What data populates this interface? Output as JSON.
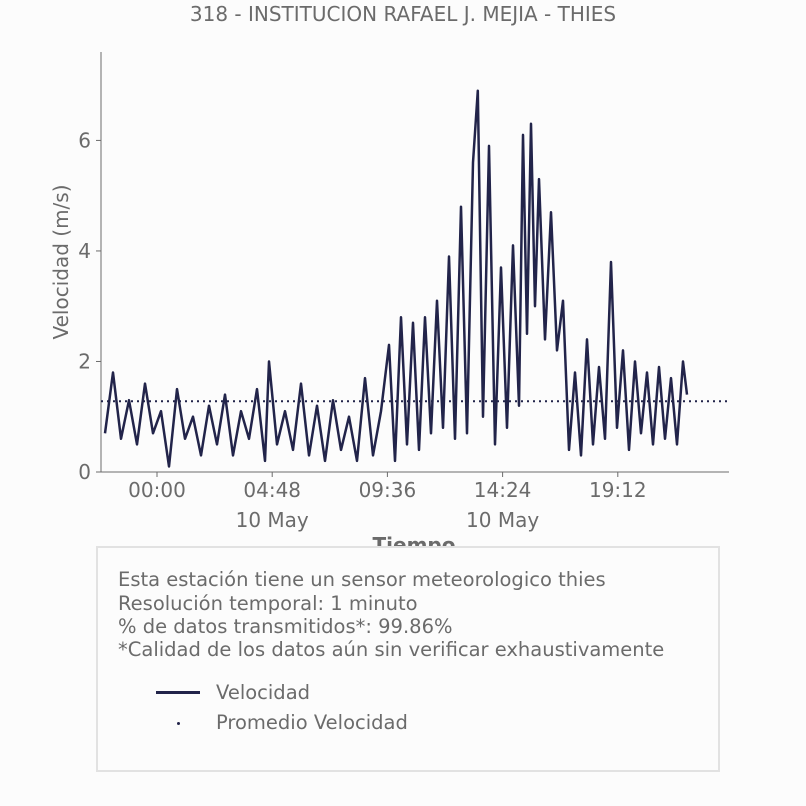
{
  "title": "318 - INSTITUCION RAFAEL J. MEJIA - THIES",
  "chart_data": {
    "type": "line",
    "ylabel": "Velocidad (m/s)",
    "xlabel": "Tiempo",
    "ylim": [
      0,
      7.6
    ],
    "yticks": [
      0,
      2,
      4,
      6
    ],
    "x_range": [
      "2023-05-09T21:40",
      "2023-05-10T23:50"
    ],
    "xticks": [
      {
        "time": "2023-05-10T00:00",
        "label": "00:00",
        "sublabel": ""
      },
      {
        "time": "2023-05-10T04:48",
        "label": "04:48",
        "sublabel": "10 May"
      },
      {
        "time": "2023-05-10T09:36",
        "label": "09:36",
        "sublabel": ""
      },
      {
        "time": "2023-05-10T14:24",
        "label": "14:24",
        "sublabel": "10 May"
      },
      {
        "time": "2023-05-10T19:12",
        "label": "19:12",
        "sublabel": ""
      }
    ],
    "series": [
      {
        "name": "Velocidad",
        "color": "#22244a",
        "style": "solid",
        "points": [
          [
            "2023-05-09T21:50",
            0.7
          ],
          [
            "2023-05-09T22:10",
            1.8
          ],
          [
            "2023-05-09T22:30",
            0.6
          ],
          [
            "2023-05-09T22:50",
            1.3
          ],
          [
            "2023-05-09T23:10",
            0.5
          ],
          [
            "2023-05-09T23:30",
            1.6
          ],
          [
            "2023-05-09T23:50",
            0.7
          ],
          [
            "2023-05-10T00:10",
            1.1
          ],
          [
            "2023-05-10T00:30",
            0.1
          ],
          [
            "2023-05-10T00:50",
            1.5
          ],
          [
            "2023-05-10T01:10",
            0.6
          ],
          [
            "2023-05-10T01:30",
            1.0
          ],
          [
            "2023-05-10T01:50",
            0.3
          ],
          [
            "2023-05-10T02:10",
            1.2
          ],
          [
            "2023-05-10T02:30",
            0.5
          ],
          [
            "2023-05-10T02:50",
            1.4
          ],
          [
            "2023-05-10T03:10",
            0.3
          ],
          [
            "2023-05-10T03:30",
            1.1
          ],
          [
            "2023-05-10T03:50",
            0.6
          ],
          [
            "2023-05-10T04:10",
            1.5
          ],
          [
            "2023-05-10T04:30",
            0.2
          ],
          [
            "2023-05-10T04:40",
            2.0
          ],
          [
            "2023-05-10T05:00",
            0.5
          ],
          [
            "2023-05-10T05:20",
            1.1
          ],
          [
            "2023-05-10T05:40",
            0.4
          ],
          [
            "2023-05-10T06:00",
            1.6
          ],
          [
            "2023-05-10T06:20",
            0.3
          ],
          [
            "2023-05-10T06:40",
            1.2
          ],
          [
            "2023-05-10T07:00",
            0.2
          ],
          [
            "2023-05-10T07:20",
            1.3
          ],
          [
            "2023-05-10T07:40",
            0.4
          ],
          [
            "2023-05-10T08:00",
            1.0
          ],
          [
            "2023-05-10T08:20",
            0.2
          ],
          [
            "2023-05-10T08:40",
            1.7
          ],
          [
            "2023-05-10T09:00",
            0.3
          ],
          [
            "2023-05-10T09:20",
            1.1
          ],
          [
            "2023-05-10T09:40",
            2.3
          ],
          [
            "2023-05-10T09:55",
            0.2
          ],
          [
            "2023-05-10T10:10",
            2.8
          ],
          [
            "2023-05-10T10:25",
            0.5
          ],
          [
            "2023-05-10T10:40",
            2.7
          ],
          [
            "2023-05-10T10:55",
            0.4
          ],
          [
            "2023-05-10T11:10",
            2.8
          ],
          [
            "2023-05-10T11:25",
            0.7
          ],
          [
            "2023-05-10T11:40",
            3.1
          ],
          [
            "2023-05-10T11:55",
            0.8
          ],
          [
            "2023-05-10T12:10",
            3.9
          ],
          [
            "2023-05-10T12:25",
            0.6
          ],
          [
            "2023-05-10T12:40",
            4.8
          ],
          [
            "2023-05-10T12:55",
            0.7
          ],
          [
            "2023-05-10T13:10",
            5.6
          ],
          [
            "2023-05-10T13:22",
            6.9
          ],
          [
            "2023-05-10T13:35",
            1.0
          ],
          [
            "2023-05-10T13:50",
            5.9
          ],
          [
            "2023-05-10T14:05",
            0.5
          ],
          [
            "2023-05-10T14:20",
            3.7
          ],
          [
            "2023-05-10T14:35",
            0.8
          ],
          [
            "2023-05-10T14:50",
            4.1
          ],
          [
            "2023-05-10T15:05",
            1.2
          ],
          [
            "2023-05-10T15:15",
            6.1
          ],
          [
            "2023-05-10T15:25",
            2.5
          ],
          [
            "2023-05-10T15:35",
            6.3
          ],
          [
            "2023-05-10T15:45",
            3.0
          ],
          [
            "2023-05-10T15:55",
            5.3
          ],
          [
            "2023-05-10T16:10",
            2.4
          ],
          [
            "2023-05-10T16:25",
            4.7
          ],
          [
            "2023-05-10T16:40",
            2.2
          ],
          [
            "2023-05-10T16:55",
            3.1
          ],
          [
            "2023-05-10T17:10",
            0.4
          ],
          [
            "2023-05-10T17:25",
            1.8
          ],
          [
            "2023-05-10T17:40",
            0.3
          ],
          [
            "2023-05-10T17:55",
            2.4
          ],
          [
            "2023-05-10T18:10",
            0.5
          ],
          [
            "2023-05-10T18:25",
            1.9
          ],
          [
            "2023-05-10T18:40",
            0.6
          ],
          [
            "2023-05-10T18:55",
            3.8
          ],
          [
            "2023-05-10T19:10",
            0.8
          ],
          [
            "2023-05-10T19:25",
            2.2
          ],
          [
            "2023-05-10T19:40",
            0.4
          ],
          [
            "2023-05-10T19:55",
            2.0
          ],
          [
            "2023-05-10T20:10",
            0.7
          ],
          [
            "2023-05-10T20:25",
            1.8
          ],
          [
            "2023-05-10T20:40",
            0.5
          ],
          [
            "2023-05-10T20:55",
            1.9
          ],
          [
            "2023-05-10T21:10",
            0.6
          ],
          [
            "2023-05-10T21:25",
            1.7
          ],
          [
            "2023-05-10T21:40",
            0.5
          ],
          [
            "2023-05-10T21:55",
            2.0
          ],
          [
            "2023-05-10T22:05",
            1.4
          ]
        ]
      },
      {
        "name": "Promedio Velocidad",
        "color": "#22244a",
        "style": "dotted",
        "constant": 1.28
      }
    ],
    "legend_placement": "bottom",
    "grid": false
  },
  "info": {
    "line1": "Esta estación tiene un sensor meteorologico thies",
    "line2": "Resolución temporal: 1 minuto",
    "line3": "% de datos transmitidos*: 99.86%",
    "line4": "*Calidad de los datos aún sin verificar exhaustivamente"
  },
  "legend": {
    "velocidad": "Velocidad",
    "promedio": "Promedio Velocidad"
  }
}
